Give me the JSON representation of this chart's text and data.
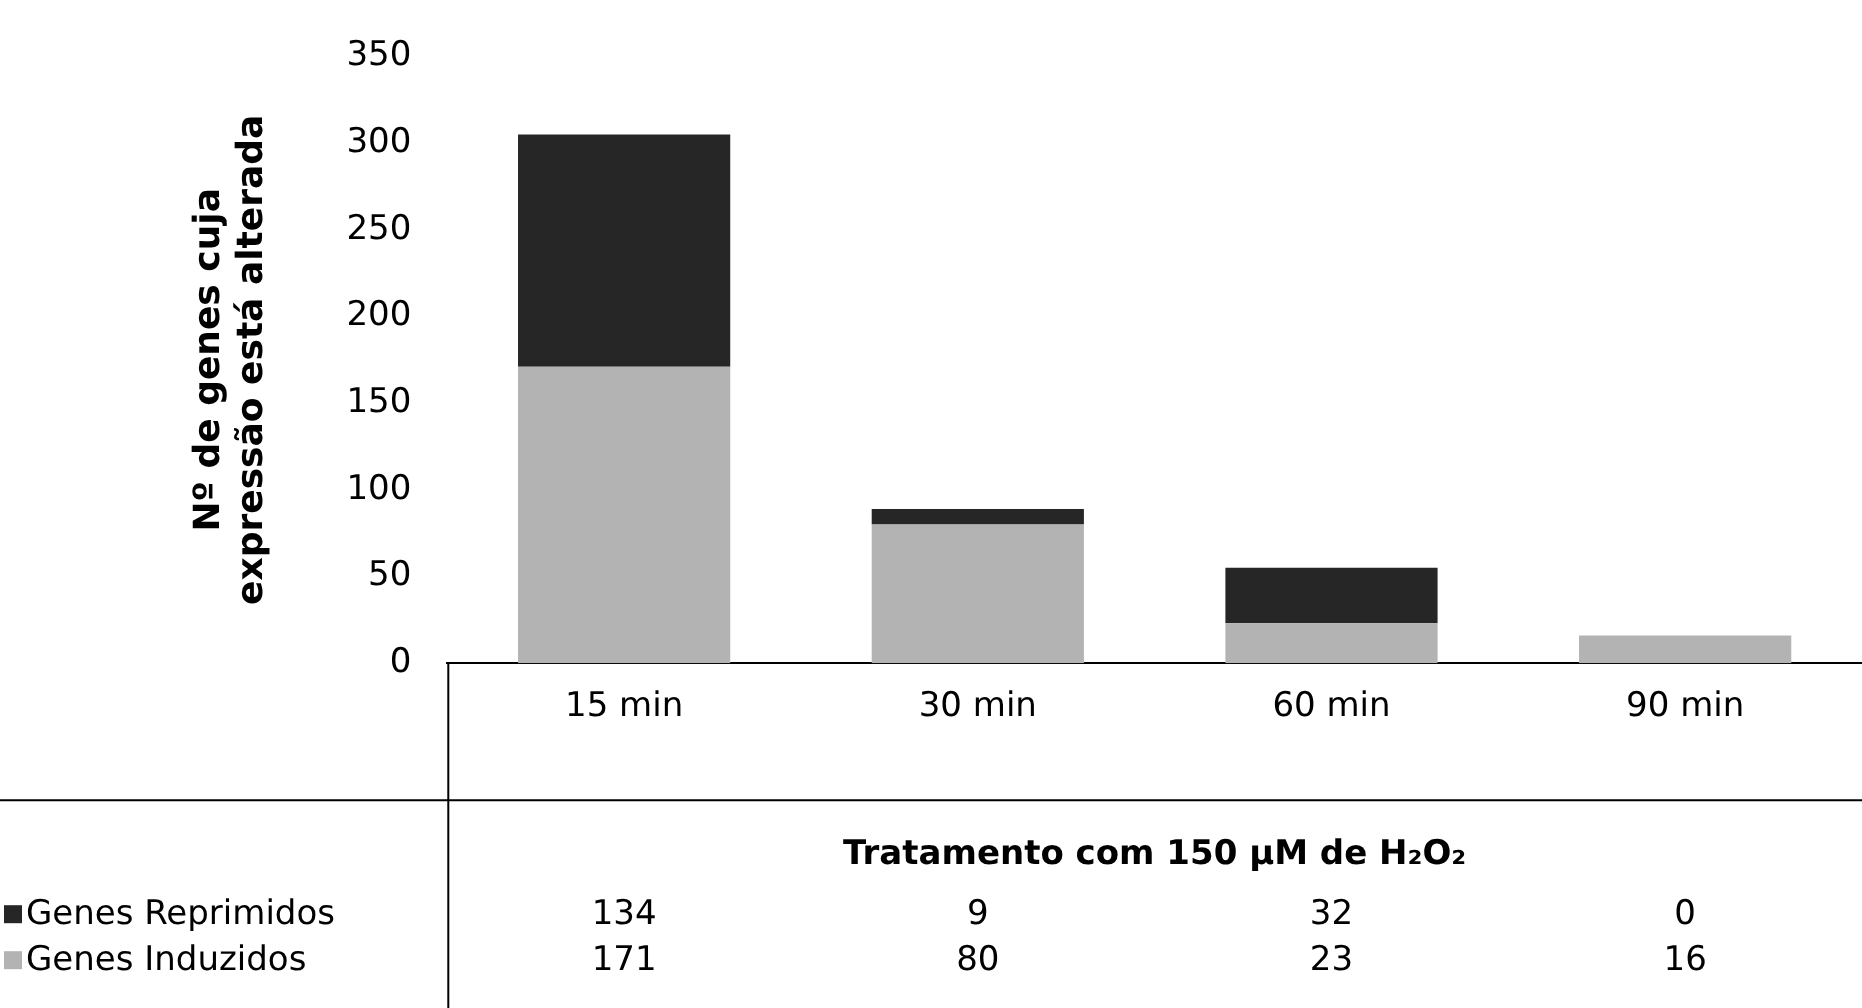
{
  "chart_data": {
    "type": "bar",
    "stacked": true,
    "xlabel": "Tratamento com 150 µM de H₂O₂",
    "ylabel": "Nº de genes cuja\nexpressão está alterada",
    "categories": [
      "15 min",
      "30 min",
      "60 min",
      "90 min"
    ],
    "series": [
      {
        "name": "Genes Induzidos",
        "color": "#b3b3b3",
        "values": [
          171,
          80,
          23,
          16
        ]
      },
      {
        "name": "Genes Reprimidos",
        "color": "#262626",
        "values": [
          134,
          9,
          32,
          0
        ]
      }
    ],
    "ylim": [
      0,
      350
    ],
    "yticks": [
      0,
      50,
      100,
      150,
      200,
      250,
      300,
      350
    ],
    "grid": false,
    "legend": "bottom left",
    "data_labels": true
  }
}
